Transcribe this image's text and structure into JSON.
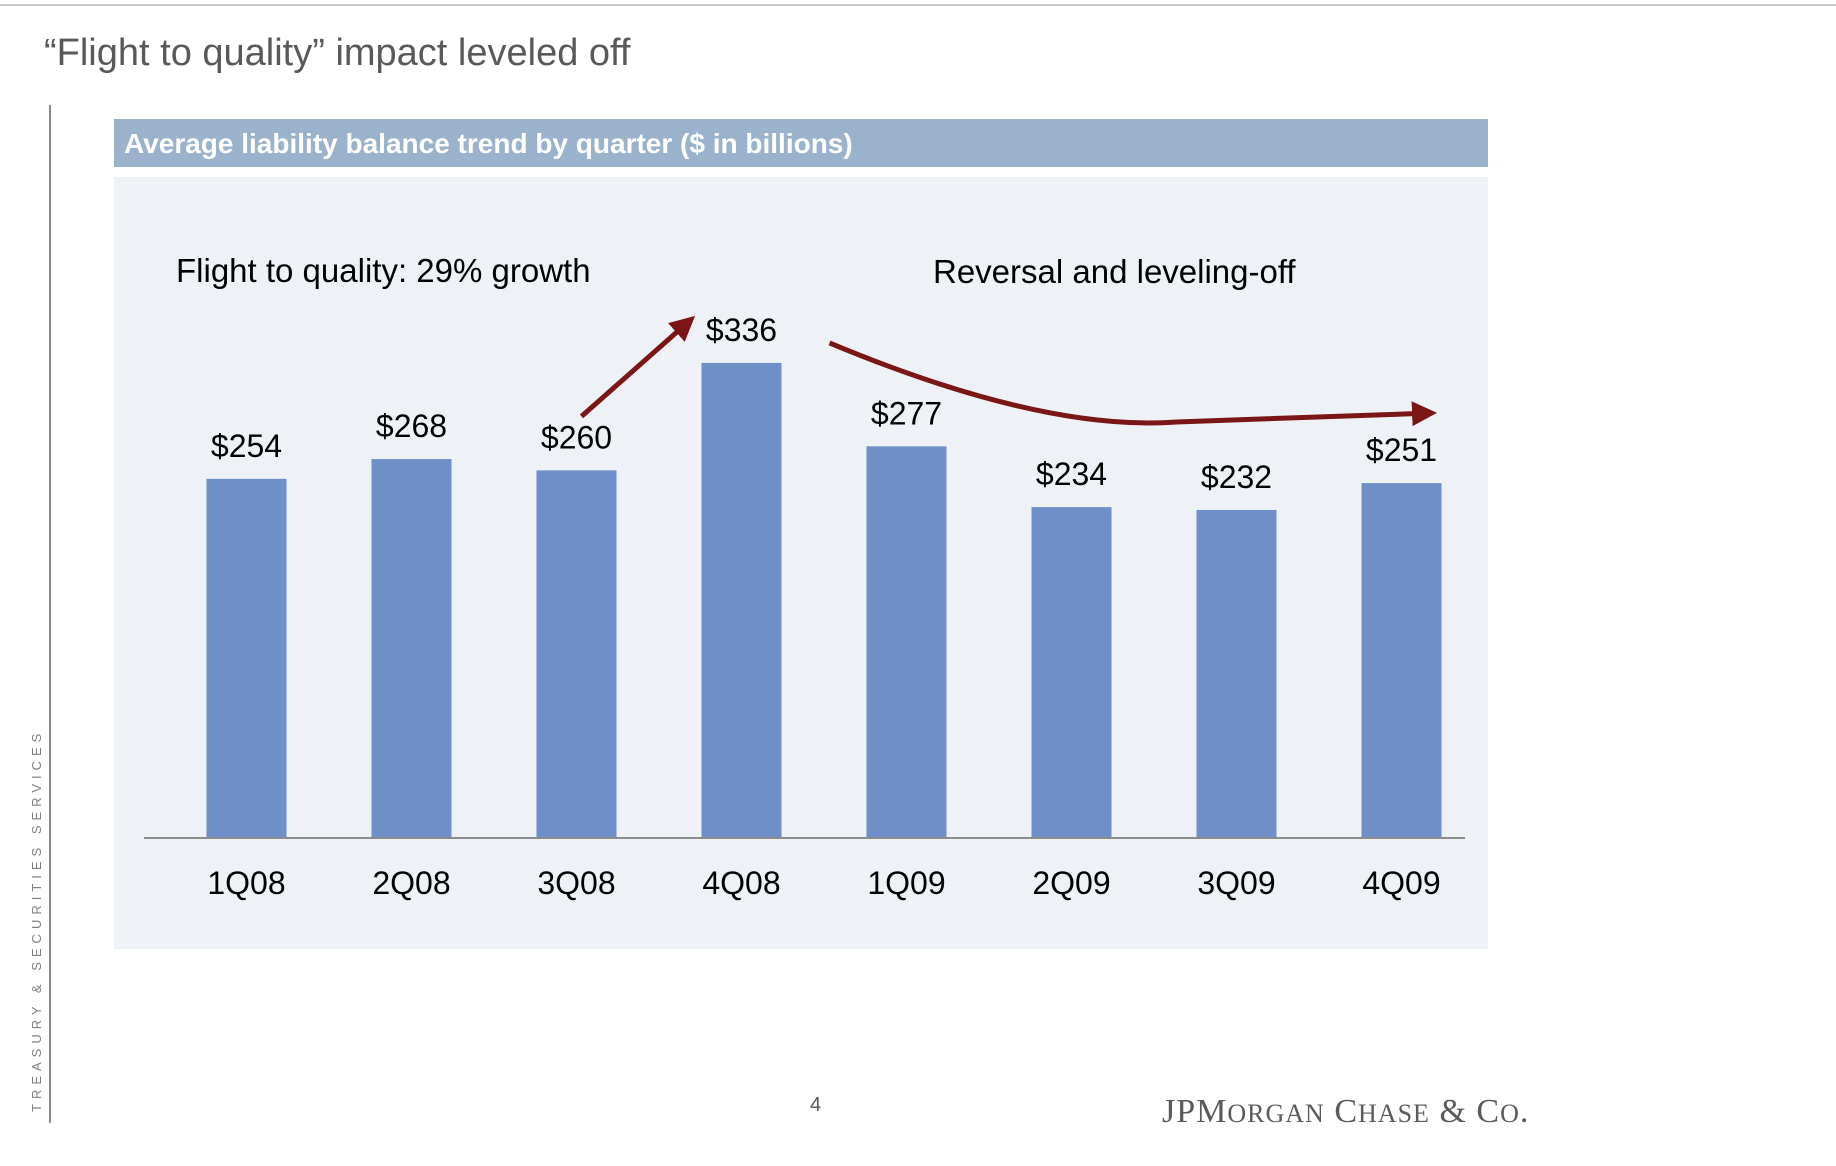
{
  "slide": {
    "title": "“Flight to quality” impact leveled off",
    "side_label": "TREASURY & SECURITIES SERVICES",
    "page_number": "4",
    "brand": "JPMorgan Chase & Co."
  },
  "chart_data": {
    "type": "bar",
    "title": "Average liability balance trend by quarter ($ in billions)",
    "categories": [
      "1Q08",
      "2Q08",
      "3Q08",
      "4Q08",
      "1Q09",
      "2Q09",
      "3Q09",
      "4Q09"
    ],
    "values": [
      254,
      268,
      260,
      336,
      277,
      234,
      232,
      251
    ],
    "data_labels": [
      "$254",
      "$268",
      "$260",
      "$336",
      "$277",
      "$234",
      "$232",
      "$251"
    ],
    "ylim": [
      0,
      360
    ],
    "grid": false,
    "annotations": [
      {
        "text": "Flight to quality: 29% growth"
      },
      {
        "text": "Reversal and leveling-off"
      }
    ],
    "colors": {
      "bar": "#6e8fc7",
      "arrow": "#7a1616",
      "axis": "#8c8c8c"
    }
  }
}
